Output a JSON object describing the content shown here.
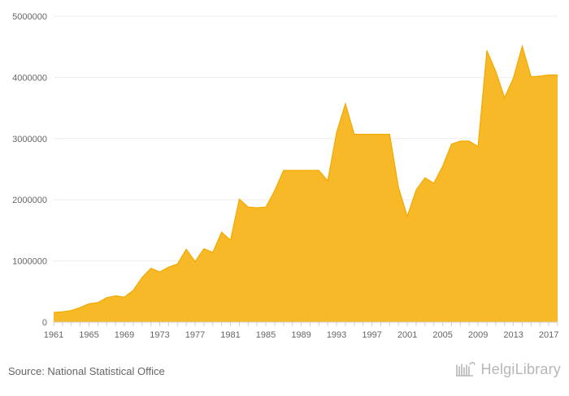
{
  "source_text": "Source: National Statistical Office",
  "logo_text": "HelgiLibrary",
  "colors": {
    "fill": "#f7b928",
    "stroke": "#f2aa00",
    "axis": "#cfcfcf",
    "grid": "#eeeeee",
    "tick_text": "#666666",
    "source_text": "#666666",
    "logo": "#b7b7b7"
  },
  "chart_data": {
    "type": "area",
    "title": "",
    "xlabel": "",
    "ylabel": "",
    "grid": true,
    "legend": "none",
    "x": [
      1961,
      1962,
      1963,
      1964,
      1965,
      1966,
      1967,
      1968,
      1969,
      1970,
      1971,
      1972,
      1973,
      1974,
      1975,
      1976,
      1977,
      1978,
      1979,
      1980,
      1981,
      1982,
      1983,
      1984,
      1985,
      1986,
      1987,
      1988,
      1989,
      1990,
      1991,
      1992,
      1993,
      1994,
      1995,
      1996,
      1997,
      1998,
      1999,
      2000,
      2001,
      2002,
      2003,
      2004,
      2005,
      2006,
      2007,
      2008,
      2009,
      2010,
      2011,
      2012,
      2013,
      2014,
      2015,
      2016,
      2017,
      2018
    ],
    "y": [
      160000,
      170000,
      190000,
      240000,
      300000,
      320000,
      400000,
      430000,
      410000,
      520000,
      730000,
      880000,
      820000,
      900000,
      950000,
      1190000,
      990000,
      1200000,
      1140000,
      1470000,
      1340000,
      2010000,
      1880000,
      1870000,
      1880000,
      2150000,
      2480000,
      2480000,
      2480000,
      2480000,
      2480000,
      2310000,
      3100000,
      3570000,
      3070000,
      3070000,
      3070000,
      3070000,
      3070000,
      2200000,
      1730000,
      2160000,
      2360000,
      2270000,
      2550000,
      2910000,
      2960000,
      2960000,
      2870000,
      4440000,
      4100000,
      3670000,
      3990000,
      4510000,
      4010000,
      4020000,
      4040000,
      4040000
    ],
    "ylim": [
      0,
      5000000
    ],
    "y_ticks": [
      0,
      1000000,
      2000000,
      3000000,
      4000000,
      5000000
    ],
    "x_tick_labels": [
      "1961",
      "1965",
      "1969",
      "1973",
      "1977",
      "1981",
      "1985",
      "1989",
      "1993",
      "1997",
      "2001",
      "2005",
      "2009",
      "2013",
      "2017"
    ]
  }
}
